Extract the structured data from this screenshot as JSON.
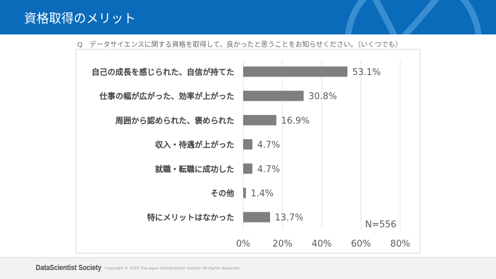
{
  "header": {
    "title": "資格取得のメリット"
  },
  "question": "Q　データサイエンスに関する資格を取得して、良かったと思うことをお知らせください。（いくつでも）",
  "chart_data": {
    "type": "bar",
    "orientation": "horizontal",
    "categories": [
      "自己の成長を感じられた、自信が持てた",
      "仕事の幅が広がった、効率が上がった",
      "周囲から認められた、褒められた",
      "収入・待遇が上がった",
      "就職・転職に成功した",
      "その他",
      "特にメリットはなかった"
    ],
    "values": [
      53.1,
      30.8,
      16.9,
      4.7,
      4.7,
      1.4,
      13.7
    ],
    "value_labels": [
      "53.1%",
      "30.8%",
      "16.9%",
      "4.7%",
      "4.7%",
      "1.4%",
      "13.7%"
    ],
    "xlim": [
      0,
      80
    ],
    "x_ticks": [
      "0%",
      "20%",
      "40%",
      "60%",
      "80%"
    ],
    "grid": true,
    "bar_color": "#7f7f7f",
    "annotation": "N=556"
  },
  "footer": {
    "brand": "DataScientist Society",
    "copyright": "Copyright © 2022 The Japan DataScientist Society. All Rights Reserved."
  }
}
